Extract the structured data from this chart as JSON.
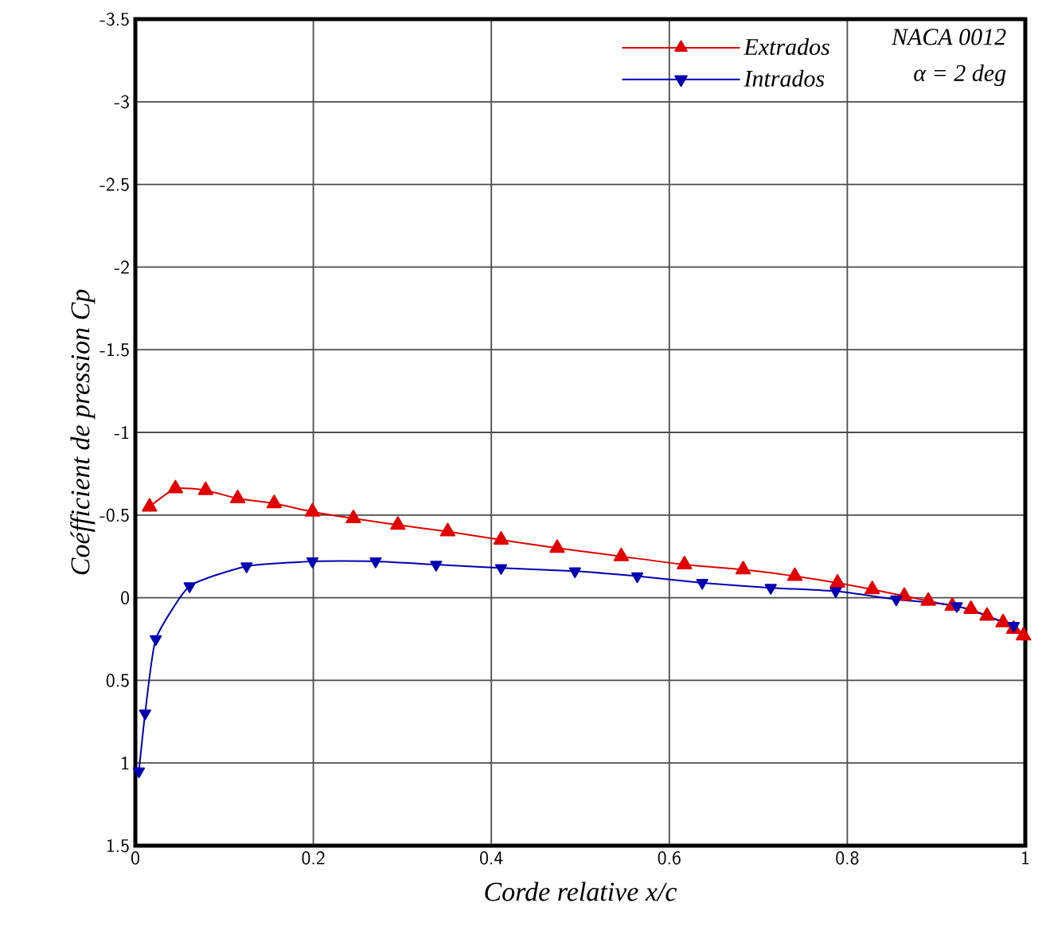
{
  "chart_data": {
    "type": "line",
    "xlabel": "Corde relative  x/c",
    "ylabel": "Coéfficient de pression  Cp",
    "annotations": [
      "NACA 0012",
      "α = 2 deg"
    ],
    "xlim": [
      0,
      1
    ],
    "ylim": [
      1.5,
      -3.5
    ],
    "xticks": [
      0,
      0.2,
      0.4,
      0.6,
      0.8,
      1
    ],
    "yticks": [
      1.5,
      1,
      0.5,
      0,
      -0.5,
      -1,
      -1.5,
      -2,
      -2.5,
      -3,
      -3.5
    ],
    "grid": true,
    "legend": "top right",
    "series": [
      {
        "name": "Extrados",
        "color": "#e00000",
        "marker": "triangle",
        "x": [
          0.016,
          0.045,
          0.079,
          0.115,
          0.156,
          0.199,
          0.245,
          0.295,
          0.351,
          0.411,
          0.474,
          0.546,
          0.617,
          0.683,
          0.741,
          0.789,
          0.828,
          0.864,
          0.891,
          0.918,
          0.939,
          0.957,
          0.975,
          0.987,
          0.998
        ],
        "values": [
          -0.55,
          -0.66,
          -0.65,
          -0.6,
          -0.57,
          -0.52,
          -0.48,
          -0.44,
          -0.4,
          -0.35,
          -0.3,
          -0.25,
          -0.2,
          -0.17,
          -0.13,
          -0.09,
          -0.05,
          -0.01,
          0.02,
          0.05,
          0.07,
          0.11,
          0.15,
          0.19,
          0.23
        ]
      },
      {
        "name": "Intrados",
        "color": "#0000b0",
        "marker": "triangle down",
        "x": [
          0.004,
          0.011,
          0.023,
          0.061,
          0.125,
          0.199,
          0.27,
          0.338,
          0.411,
          0.494,
          0.564,
          0.637,
          0.714,
          0.787,
          0.855,
          0.923,
          0.987
        ],
        "values": [
          1.05,
          0.7,
          0.25,
          -0.07,
          -0.19,
          -0.22,
          -0.22,
          -0.2,
          -0.18,
          -0.16,
          -0.13,
          -0.09,
          -0.06,
          -0.04,
          0.01,
          0.05,
          0.17
        ]
      }
    ]
  }
}
